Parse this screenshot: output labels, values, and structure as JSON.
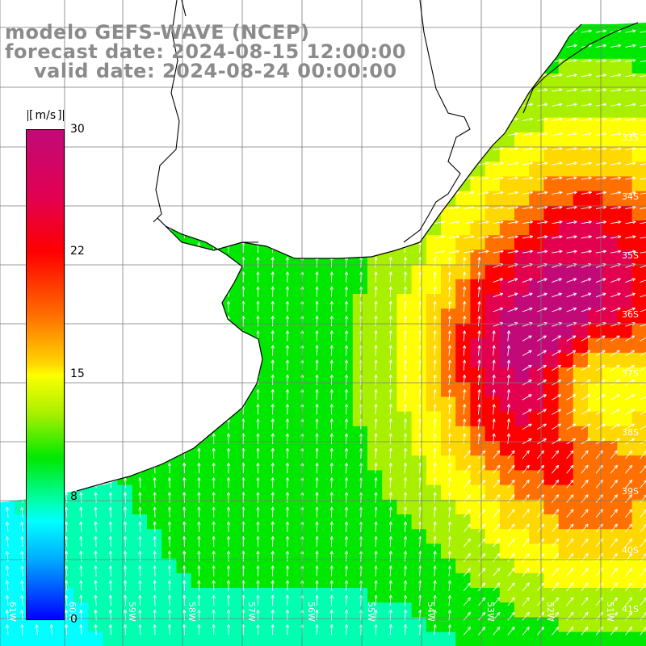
{
  "titles": {
    "model": "modelo GEFS-WAVE (NCEP)",
    "forecast": "forecast date: 2024-08-15 12:00:00",
    "valid": "valid date: 2024-08-24 00:00:00"
  },
  "colorbar": {
    "unit": "m/s",
    "min": 0,
    "max": 30,
    "ticks": [
      "30",
      "22",
      "15",
      "8",
      "0"
    ],
    "colors": [
      "#0000ff",
      "#00a8ff",
      "#00ffff",
      "#00ffb0",
      "#00e800",
      "#a8f000",
      "#ffff00",
      "#ffd800",
      "#ff7000",
      "#ff0000",
      "#e3004f",
      "#c10a78"
    ]
  },
  "lat_labels": [
    "33S",
    "34S",
    "35S",
    "36S",
    "37S",
    "38S",
    "39S",
    "40S",
    "41S"
  ],
  "lon_labels": [
    "61W",
    "60W",
    "59W",
    "58W",
    "57W",
    "56W",
    "55W",
    "54W",
    "53W",
    "52W",
    "51W"
  ],
  "colors": {
    "land": "#ffffff",
    "coastline": "#000000",
    "grid": "#7a7a7a",
    "arrow": "#ffffff",
    "title": "#8b8b8b"
  }
}
